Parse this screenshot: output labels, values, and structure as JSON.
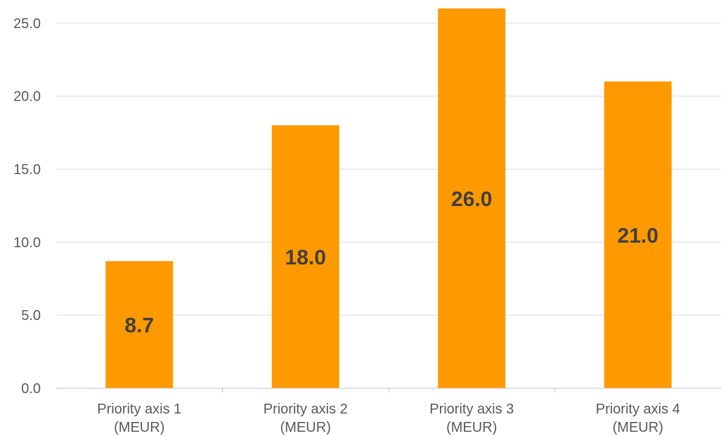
{
  "chart_data": {
    "type": "bar",
    "categories": [
      [
        "Priority axis 1",
        "(MEUR)"
      ],
      [
        "Priority axis 2",
        "(MEUR)"
      ],
      [
        "Priority axis 3",
        "(MEUR)"
      ],
      [
        "Priority axis 4",
        "(MEUR)"
      ]
    ],
    "values": [
      8.7,
      18.0,
      26.0,
      21.0
    ],
    "data_labels": [
      "8.7",
      "18.0",
      "26.0",
      "21.0"
    ],
    "yticks": [
      0,
      5,
      10,
      15,
      20,
      25
    ],
    "ytick_labels": [
      "0.0",
      "5.0",
      "10.0",
      "15.0",
      "20.0",
      "25.0"
    ],
    "ylim": [
      0,
      26
    ],
    "grid": true,
    "legend": "none",
    "title": "",
    "xlabel": "",
    "ylabel": "",
    "colors": {
      "bar": "#FF9900",
      "grid": "#D9D9D9",
      "axis": "#BFBFBF"
    }
  }
}
